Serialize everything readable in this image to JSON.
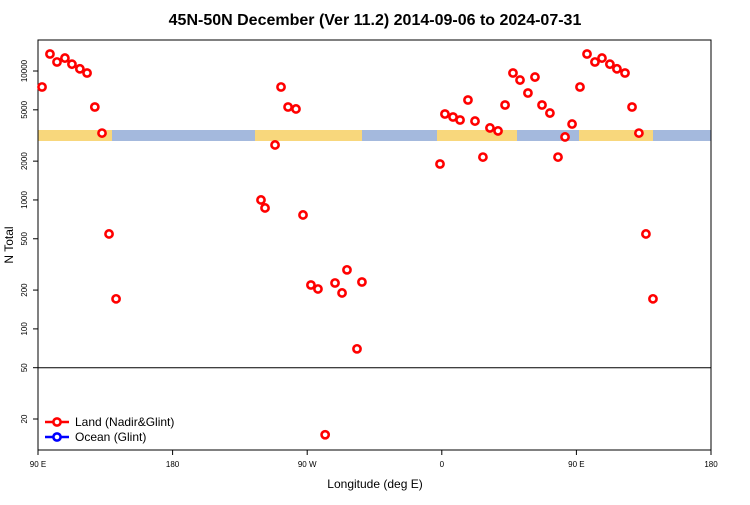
{
  "chart_data": {
    "type": "scatter",
    "title": "45N-50N December (Ver 11.2)   2014-09-06 to 2024-07-31",
    "x_label": "Longitude (deg E)",
    "y_label": "N Total",
    "log_y": true,
    "legend": "bottom-left",
    "hline": 50,
    "xlim": [
      90,
      540
    ],
    "xticks": [
      {
        "value": 90,
        "label": "90 E"
      },
      180,
      {
        "value": 270,
        "label": "90 W"
      },
      {
        "value": 360,
        "label": "0"
      },
      {
        "value": 450,
        "label": "90 E"
      },
      {
        "value": 540,
        "label": "180"
      }
    ],
    "ylim": [
      11.5,
      17400
    ],
    "yticks": [
      20,
      50,
      100,
      200,
      500,
      1000,
      2000,
      5000,
      10000
    ],
    "series": [
      {
        "name": "Land (Nadir&Glint)",
        "color": "#ff0000",
        "x": [
          92.7,
          98,
          102.7,
          108,
          112.7,
          118,
          122.8,
          128,
          132.8,
          137.5,
          142.2,
          239.1,
          241.8,
          248.5,
          252.5,
          257.2,
          262.5,
          267.2,
          272.5,
          277.2,
          282,
          288.6,
          293.3,
          296.6,
          303.3,
          306.6,
          358.8,
          362.1,
          367.5,
          372.2,
          377.5,
          382.2,
          387.5,
          392.2,
          397.6,
          402.3,
          407.6,
          412.3,
          417.6,
          422.3,
          427,
          432.3,
          437.7,
          442.4,
          447.1,
          452.4,
          457.1,
          462.4,
          467.1,
          472.4,
          477.1,
          482.5,
          487.2,
          491.8,
          496.5,
          501.2
        ],
        "values": [
          7520,
          13550,
          11750,
          12600,
          11300,
          10400,
          9650,
          5260,
          3300,
          545,
          171,
          1000,
          867,
          2670,
          7520,
          5260,
          5080,
          765,
          219,
          204,
          15.1,
          227,
          190,
          287,
          70,
          231,
          1900,
          4640,
          4400,
          4170,
          5960,
          4090,
          2150,
          3620,
          3430,
          5450,
          9650,
          8510,
          6750,
          8980,
          5450,
          4720,
          2150,
          3080,
          3880,
          7520,
          13550,
          11750,
          12600,
          11300,
          10400,
          9650,
          5260,
          3300,
          545,
          171
        ]
      },
      {
        "name": "Ocean (Glint)",
        "color": "#0000ff",
        "x": [],
        "values": []
      }
    ]
  }
}
